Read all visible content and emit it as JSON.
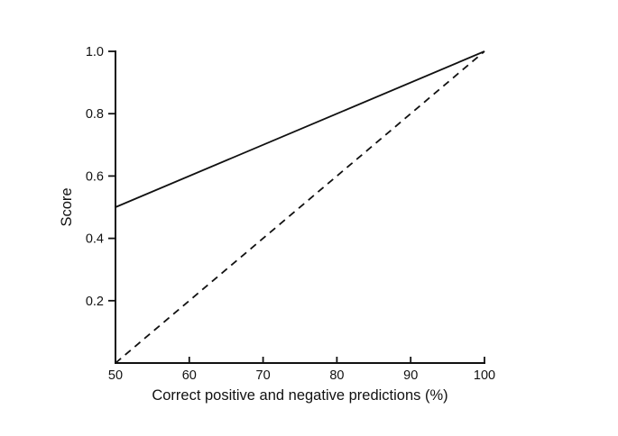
{
  "figure": {
    "background": "#ffffff",
    "ink_color": "#111111"
  },
  "chart_data": {
    "type": "line",
    "title": "",
    "xlabel": "Correct positive and negative predictions (%)",
    "ylabel": "Score",
    "xlim": [
      50,
      100
    ],
    "ylim": [
      0,
      1.0
    ],
    "x_ticks": [
      50,
      60,
      70,
      80,
      90,
      100
    ],
    "x_tick_labels": [
      "50",
      "60",
      "70",
      "80",
      "90",
      "100"
    ],
    "y_ticks": [
      0.2,
      0.4,
      0.6,
      0.8,
      1.0
    ],
    "y_tick_labels": [
      "0.2",
      "0.4",
      "0.6",
      "0.8",
      "1.0"
    ],
    "grid": false,
    "legend": null,
    "tick_style": {
      "x_direction": "inward-up",
      "y_direction": "outward-left"
    },
    "series": [
      {
        "name": "solid-line",
        "style": "solid",
        "color": "#111111",
        "points": [
          [
            50,
            0.5
          ],
          [
            100,
            1.0
          ]
        ]
      },
      {
        "name": "dashed-line",
        "style": "dashed",
        "color": "#111111",
        "points": [
          [
            50,
            0.0
          ],
          [
            100,
            1.0
          ]
        ]
      }
    ]
  }
}
